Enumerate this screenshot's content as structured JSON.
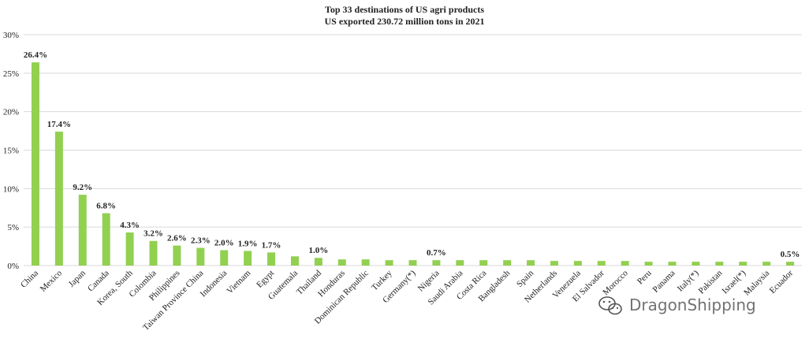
{
  "chart_data": {
    "type": "bar",
    "title": "Top 33 destinations of US agri products",
    "subtitle": "US exported 230.72 million tons in 2021",
    "categories": [
      "China",
      "Mexico",
      "Japan",
      "Canada",
      "Korea, South",
      "Colombia",
      "Philippines",
      "Taiwan Province China",
      "Indonesia",
      "Vietnam",
      "Egypt",
      "Guatemala",
      "Thailand",
      "Honduras",
      "Dominican Republic",
      "Turkey",
      "Germany(*)",
      "Nigeria",
      "Saudi Arabia",
      "Costa Rica",
      "Bangladesh",
      "Spain",
      "Netherlands",
      "Venezuela",
      "El Salvador",
      "Morocco",
      "Peru",
      "Panama",
      "Italy(*)",
      "Pakistan",
      "Israel(*)",
      "Malaysia",
      "Ecuador"
    ],
    "values": [
      26.4,
      17.4,
      9.2,
      6.8,
      4.3,
      3.2,
      2.6,
      2.3,
      2.0,
      1.9,
      1.7,
      1.2,
      1.0,
      0.8,
      0.8,
      0.7,
      0.7,
      0.7,
      0.7,
      0.7,
      0.7,
      0.7,
      0.6,
      0.6,
      0.6,
      0.6,
      0.5,
      0.5,
      0.5,
      0.5,
      0.5,
      0.5,
      0.5
    ],
    "data_labels": [
      "26.4%",
      "17.4%",
      "9.2%",
      "6.8%",
      "4.3%",
      "3.2%",
      "2.6%",
      "2.3%",
      "2.0%",
      "1.9%",
      "1.7%",
      "",
      "1.0%",
      "",
      "",
      "",
      "",
      "0.7%",
      "",
      "",
      "",
      "",
      "",
      "",
      "",
      "",
      "",
      "",
      "",
      "",
      "",
      "",
      "0.5%"
    ],
    "y_ticks": [
      "0%",
      "5%",
      "10%",
      "15%",
      "20%",
      "25%",
      "30%"
    ],
    "ylim": [
      0,
      30
    ],
    "grid": true,
    "legend": "none",
    "bar_color": "#92d050",
    "grid_color": "#d9d9d9"
  },
  "watermark": {
    "text": "DragonShipping",
    "icon": "wechat-icon"
  }
}
